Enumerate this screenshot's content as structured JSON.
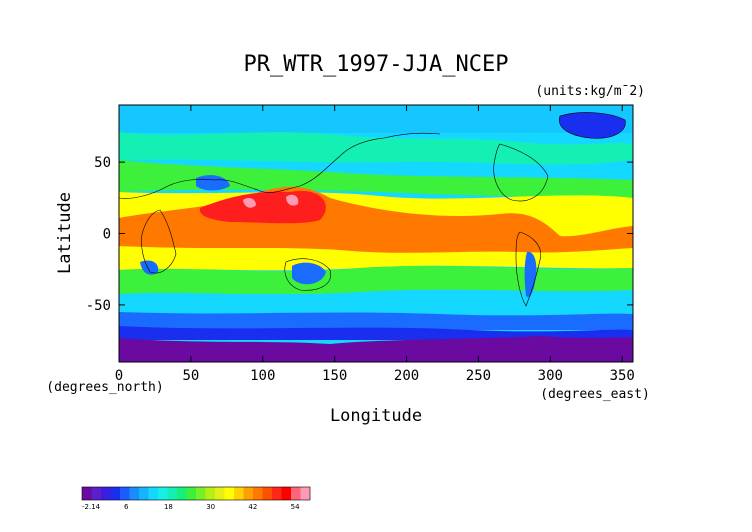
{
  "title": "PR_WTR_1997-JJA_NCEP",
  "units_label": "(units:kg/m¯2)",
  "x_axis": {
    "label": "Longitude",
    "unit_label": "(degrees_east)",
    "ticks": [
      0,
      50,
      100,
      150,
      200,
      250,
      300,
      350
    ],
    "range": [
      0,
      357.5
    ]
  },
  "y_axis": {
    "label": "Latitude",
    "unit_label": "(degrees_north)",
    "ticks": [
      50,
      0,
      -50
    ],
    "range": [
      -90,
      90
    ]
  },
  "colorbar": {
    "labels": [
      "-2.14",
      "6",
      "18",
      "30",
      "42",
      "54"
    ],
    "colors": [
      "#6a0aa0",
      "#5c1fc8",
      "#3a1fe0",
      "#1a2ef0",
      "#1a5cff",
      "#1a8cff",
      "#14b4ff",
      "#14d8ff",
      "#14f0e6",
      "#14f0b4",
      "#14f078",
      "#3cf03c",
      "#78f028",
      "#b4f014",
      "#e6f014",
      "#ffff00",
      "#ffd200",
      "#ffa000",
      "#ff7800",
      "#ff5000",
      "#ff2814",
      "#ff0000",
      "#ff6478",
      "#ff9ab4"
    ]
  },
  "colors": {
    "polar": "#6a0aa0",
    "deep_blue": "#1a2ef0",
    "mid_blue": "#1a6cff",
    "cyan": "#14c8ff",
    "aqua": "#14f0c8",
    "green": "#3cf03c",
    "yellow": "#ffff00",
    "orange": "#ff7800",
    "red": "#ff1e1e",
    "pink": "#ff9ab4"
  }
}
